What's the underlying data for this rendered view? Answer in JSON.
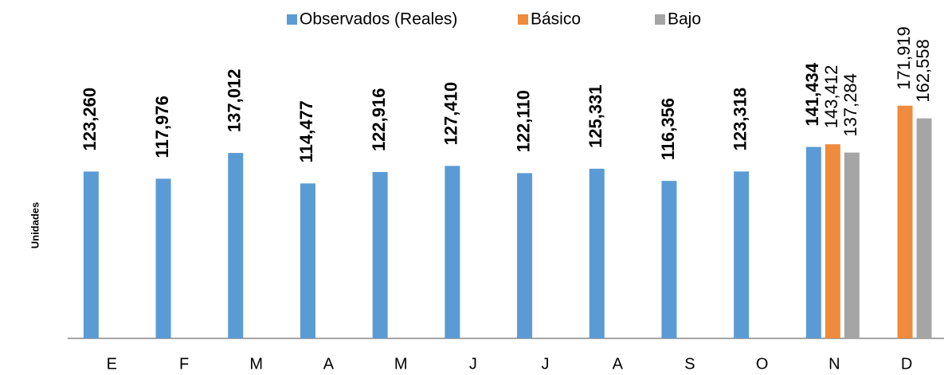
{
  "chart_data": {
    "type": "bar",
    "y_label": "Unidades",
    "categories": [
      "E",
      "F",
      "M",
      "A",
      "M",
      "J",
      "J",
      "A",
      "S",
      "O",
      "N",
      "D"
    ],
    "series": [
      {
        "name": "Observados (Reales)",
        "color": "#5b9bd5",
        "values": [
          123260,
          117976,
          137012,
          114477,
          122916,
          127410,
          122110,
          125331,
          116356,
          123318,
          141434,
          null
        ],
        "value_labels": [
          "123,260",
          "117,976",
          "137,012",
          "114,477",
          "122,916",
          "127,410",
          "122,110",
          "125,331",
          "116,356",
          "123,318",
          "141,434",
          null
        ]
      },
      {
        "name": "Básico",
        "color": "#f08a3c",
        "values": [
          null,
          null,
          null,
          null,
          null,
          null,
          null,
          null,
          null,
          null,
          143412,
          171919
        ],
        "value_labels": [
          null,
          null,
          null,
          null,
          null,
          null,
          null,
          null,
          null,
          null,
          "143,412",
          "171,919"
        ]
      },
      {
        "name": "Bajo",
        "color": "#a5a5a5",
        "values": [
          null,
          null,
          null,
          null,
          null,
          null,
          null,
          null,
          null,
          null,
          137284,
          162558
        ],
        "value_labels": [
          null,
          null,
          null,
          null,
          null,
          null,
          null,
          null,
          null,
          null,
          "137,284",
          "162,558"
        ]
      }
    ],
    "ylim": [
      0,
      250000
    ],
    "legend": "top"
  }
}
